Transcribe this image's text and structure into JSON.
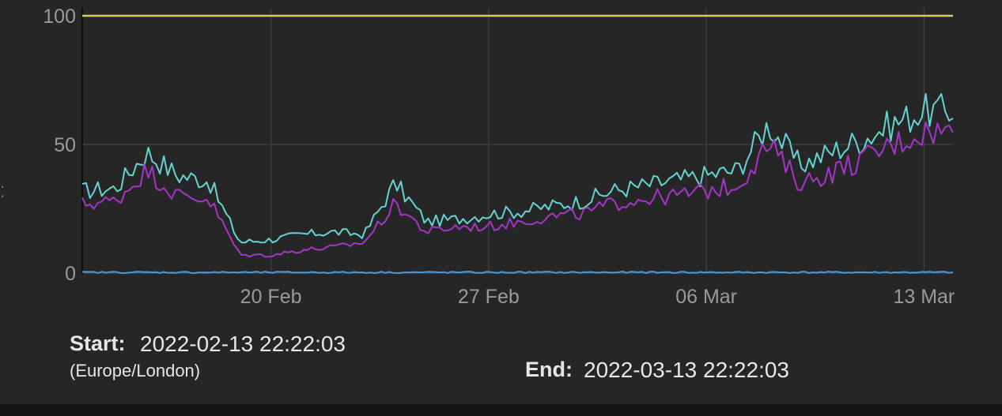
{
  "chart_data": {
    "type": "line",
    "title": "",
    "xlabel": "",
    "ylabel": "",
    "xlim": [
      "2022-02-13 22:22:03",
      "2022-03-13 22:22:03"
    ],
    "ylim": [
      0,
      100
    ],
    "y_ticks": [
      {
        "value": 0,
        "label": "0"
      },
      {
        "value": 50,
        "label": "50"
      },
      {
        "value": 100,
        "label": "100"
      }
    ],
    "x_ticks": [
      {
        "value": "2022-02-20",
        "label": "20 Feb"
      },
      {
        "value": "2022-02-27",
        "label": "27 Feb"
      },
      {
        "value": "2022-03-06",
        "label": "06 Mar"
      },
      {
        "value": "2022-03-13",
        "label": "13 Mar"
      }
    ],
    "grid": true,
    "threshold": {
      "value": 100,
      "color": "#d9cc5c"
    },
    "x": [
      "2022-02-13",
      "2022-02-14",
      "2022-02-15",
      "2022-02-16",
      "2022-02-17",
      "2022-02-18",
      "2022-02-19",
      "2022-02-20",
      "2022-02-21",
      "2022-02-22",
      "2022-02-23",
      "2022-02-24",
      "2022-02-25",
      "2022-02-26",
      "2022-02-27",
      "2022-02-28",
      "2022-03-01",
      "2022-03-02",
      "2022-03-03",
      "2022-03-04",
      "2022-03-05",
      "2022-03-06",
      "2022-03-07",
      "2022-03-08",
      "2022-03-09",
      "2022-03-10",
      "2022-03-11",
      "2022-03-12",
      "2022-03-13"
    ],
    "series": [
      {
        "color": "#63d4d0",
        "values": [
          31,
          32,
          33,
          47,
          38,
          36,
          12,
          13,
          15,
          16,
          15,
          35,
          20,
          21,
          23,
          24,
          26,
          28,
          32,
          34,
          36,
          38,
          40,
          58,
          42,
          47,
          52,
          58,
          63
        ]
      },
      {
        "color": "#a535c8",
        "values": [
          26,
          27,
          28,
          40,
          30,
          29,
          7,
          7,
          9,
          10,
          12,
          27,
          16,
          18,
          18,
          20,
          22,
          23,
          27,
          29,
          30,
          32,
          34,
          50,
          35,
          39,
          44,
          50,
          55
        ]
      },
      {
        "color": "#4f9bd8",
        "values": [
          0,
          0,
          0,
          0,
          0,
          0,
          0,
          0,
          0,
          0,
          0,
          0,
          0,
          0,
          0,
          0,
          0,
          0,
          0,
          0,
          0,
          0,
          0,
          0,
          0,
          0,
          0,
          0,
          0
        ]
      }
    ]
  },
  "footer": {
    "start_label": "Start:",
    "start_value": "2022-02-13 22:22:03",
    "timezone": "(Europe/London)",
    "end_label": "End:",
    "end_value": "2022-03-13 22:22:03"
  },
  "y_axis_fragment": "Vo"
}
